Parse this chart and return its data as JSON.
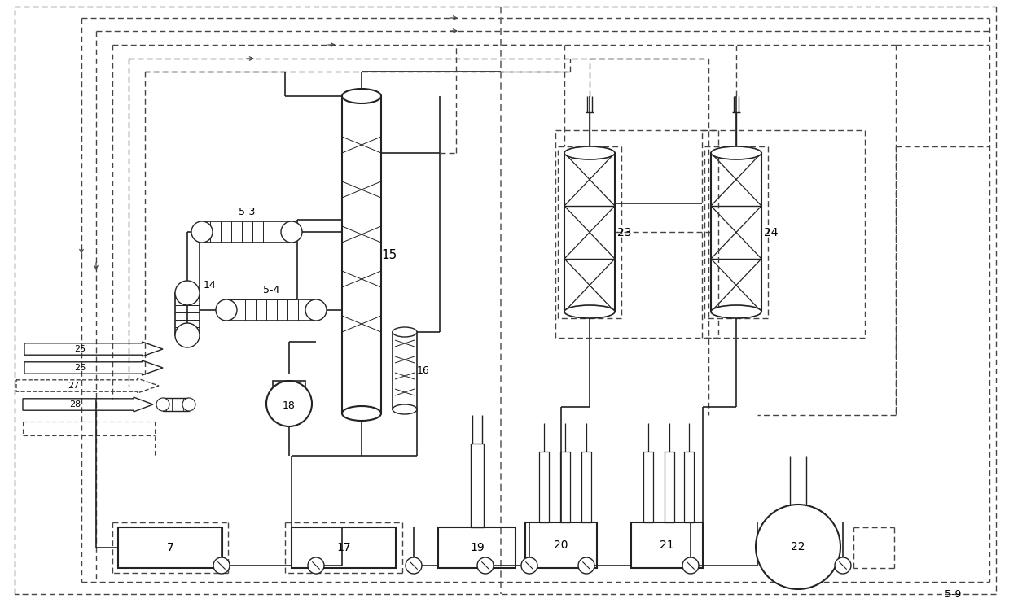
{
  "bg_color": "#ffffff",
  "line_color": "#222222",
  "dashed_color": "#444444",
  "figsize": [
    12.39,
    7.41
  ],
  "dpi": 100
}
